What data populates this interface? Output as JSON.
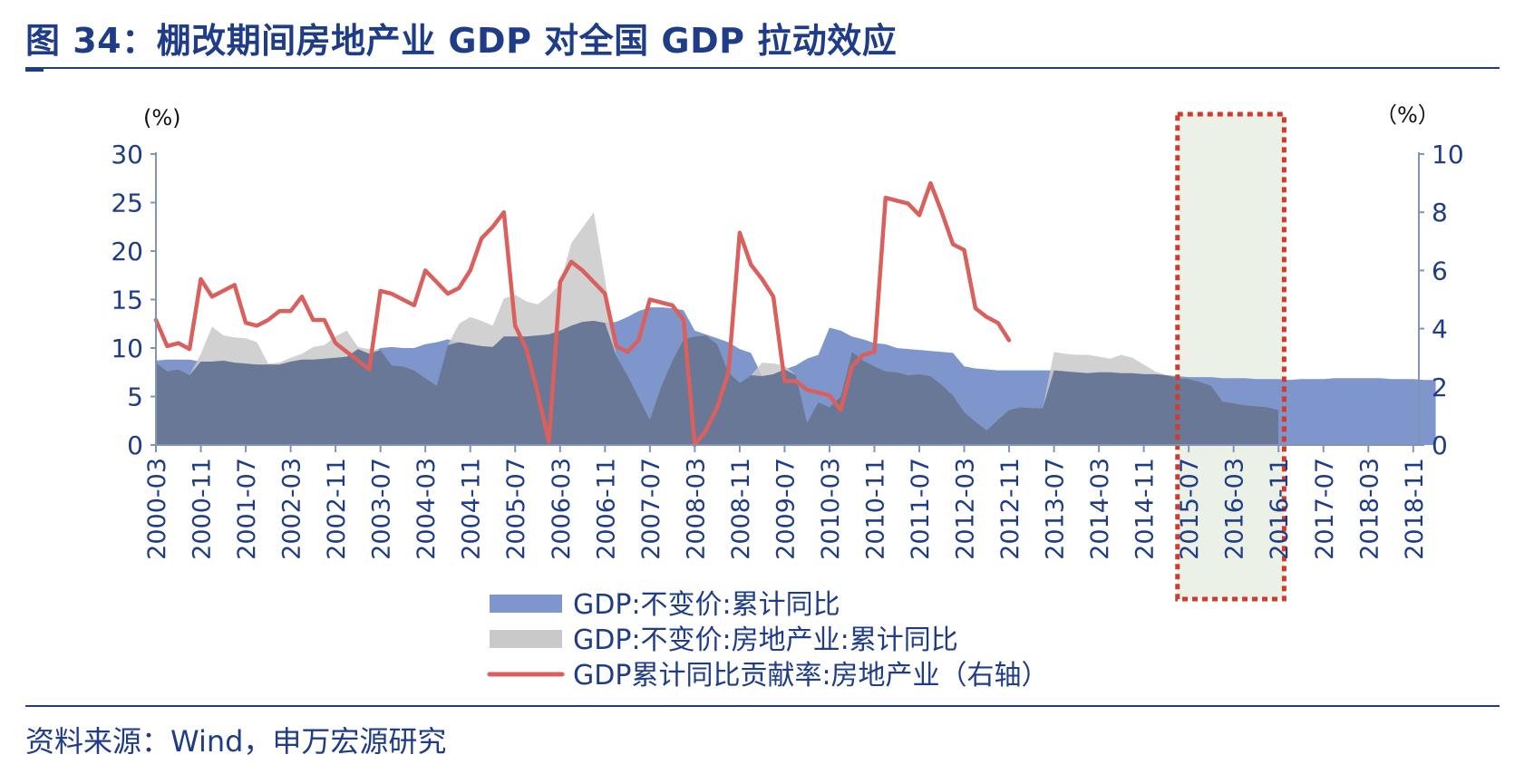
{
  "title": "图 34：棚改期间房地产业 GDP 对全国 GDP 拉动效应",
  "source": "资料来源：Wind，申万宏源研究",
  "colors": {
    "brand": "#1f3c88",
    "gdp": "#7f96cd",
    "realestate": "#c9c9c9",
    "overlap": "#687896",
    "line": "#d9605d",
    "highlight_fill": "#e6ecdf",
    "highlight_border": "#d23b2b"
  },
  "chart_data": {
    "type": "area",
    "left_unit": "(%)",
    "right_unit": "（%）",
    "ylim_left": [
      0,
      30
    ],
    "ylim_right": [
      0,
      10
    ],
    "left_ticks": [
      "0",
      "5",
      "10",
      "15",
      "20",
      "25",
      "30"
    ],
    "right_ticks": [
      "0",
      "2",
      "4",
      "6",
      "8",
      "10"
    ],
    "x_tick_labels": [
      "2000-03",
      "2000-11",
      "2001-07",
      "2002-03",
      "2002-11",
      "2003-07",
      "2004-03",
      "2004-11",
      "2005-07",
      "2006-03",
      "2006-11",
      "2007-07",
      "2008-03",
      "2008-11",
      "2009-07",
      "2010-03",
      "2010-11",
      "2011-07",
      "2012-03",
      "2012-11",
      "2013-07",
      "2014-03",
      "2014-11",
      "2015-07",
      "2016-03",
      "2016-11",
      "2017-07",
      "2018-03",
      "2018-11"
    ],
    "grid": false,
    "legend_position": "bottom-center",
    "highlight_range": [
      "2015-05",
      "2016-12"
    ],
    "x_start": "2000-03",
    "x_step_months": 2,
    "series": [
      {
        "name": "GDP:不变价:累计同比",
        "type": "area",
        "axis": "left",
        "values": [
          8.7,
          8.8,
          8.8,
          8.8,
          8.6,
          8.6,
          8.7,
          8.5,
          8.4,
          8.3,
          8.3,
          8.3,
          8.6,
          8.8,
          8.8,
          8.9,
          9.0,
          9.1,
          9.9,
          9.4,
          10.0,
          10.1,
          10.0,
          10.0,
          10.4,
          10.6,
          10.9,
          10.6,
          10.4,
          10.2,
          10.1,
          11.2,
          11.2,
          11.2,
          11.3,
          11.4,
          11.8,
          12.3,
          12.7,
          12.8,
          12.6,
          12.7,
          13.2,
          13.8,
          14.2,
          14.2,
          14.1,
          13.9,
          11.8,
          11.4,
          11.0,
          10.6,
          9.9,
          9.5,
          7.1,
          7.3,
          7.8,
          8.2,
          8.9,
          9.3,
          12.1,
          11.8,
          11.2,
          10.9,
          10.5,
          10.4,
          10.0,
          9.9,
          9.8,
          9.7,
          9.6,
          9.5,
          8.1,
          7.9,
          7.8,
          7.7,
          7.7,
          7.7,
          7.7,
          7.7,
          7.7,
          7.6,
          7.5,
          7.4,
          7.5,
          7.5,
          7.4,
          7.4,
          7.3,
          7.3,
          7.2,
          7.1,
          7.0,
          7.0,
          7.0,
          6.9,
          6.9,
          6.9,
          6.8,
          6.8,
          6.8,
          6.7,
          6.8,
          6.8,
          6.8,
          6.9,
          6.9,
          6.9,
          6.9,
          6.9,
          6.8,
          6.8,
          6.8,
          6.7,
          6.7
        ]
      },
      {
        "name": "GDP:不变价:房地产业:累计同比",
        "type": "area",
        "axis": "left",
        "values": [
          8.5,
          7.6,
          7.8,
          7.2,
          9.4,
          12.2,
          11.3,
          11.1,
          11.0,
          10.6,
          8.4,
          8.5,
          9.0,
          9.4,
          10.1,
          10.3,
          11.2,
          11.8,
          10.1,
          9.9,
          9.8,
          8.2,
          8.1,
          7.7,
          6.9,
          6.1,
          10.3,
          12.5,
          13.2,
          12.8,
          12.3,
          15.1,
          15.5,
          14.8,
          14.5,
          15.4,
          16.6,
          20.8,
          22.4,
          24.0,
          17.1,
          9.2,
          7.2,
          4.9,
          2.6,
          6.0,
          8.7,
          10.9,
          11.2,
          11.3,
          10.4,
          7.5,
          6.4,
          7.2,
          8.5,
          8.4,
          8.2,
          7.2,
          2.3,
          4.4,
          3.9,
          5.0,
          9.6,
          8.7,
          8.1,
          7.6,
          7.5,
          7.2,
          7.3,
          7.1,
          6.2,
          5.1,
          3.4,
          2.4,
          1.5,
          2.6,
          3.6,
          3.9,
          3.8,
          3.8,
          9.6,
          9.4,
          9.3,
          9.3,
          9.1,
          8.9,
          9.3,
          9.0,
          8.3,
          7.6,
          7.2,
          6.9,
          6.8,
          6.5,
          6.1,
          4.5,
          4.3,
          4.1,
          4.0,
          3.9,
          3.6
        ]
      },
      {
        "name": "GDP累计同比贡献率:房地产业（右轴）",
        "type": "line",
        "axis": "right",
        "values": [
          4.3,
          3.4,
          3.5,
          3.3,
          5.7,
          5.1,
          5.3,
          5.5,
          4.2,
          4.1,
          4.3,
          4.6,
          4.6,
          5.1,
          4.3,
          4.3,
          3.5,
          3.2,
          2.9,
          2.6,
          5.3,
          5.2,
          5.0,
          4.8,
          6.0,
          5.6,
          5.2,
          5.4,
          6.0,
          7.1,
          7.5,
          8.0,
          4.1,
          3.3,
          1.8,
          0.1,
          5.6,
          6.3,
          6.0,
          5.6,
          5.2,
          3.4,
          3.2,
          3.6,
          5.0,
          4.9,
          4.8,
          4.3,
          0.0,
          0.5,
          1.3,
          2.5,
          7.3,
          6.2,
          5.7,
          5.1,
          2.2,
          2.2,
          1.9,
          1.8,
          1.7,
          1.2,
          2.7,
          3.1,
          3.2,
          8.5,
          8.4,
          8.3,
          7.9,
          9.0,
          8.0,
          6.9,
          6.7,
          4.7,
          4.4,
          4.2,
          3.6
        ]
      }
    ]
  }
}
